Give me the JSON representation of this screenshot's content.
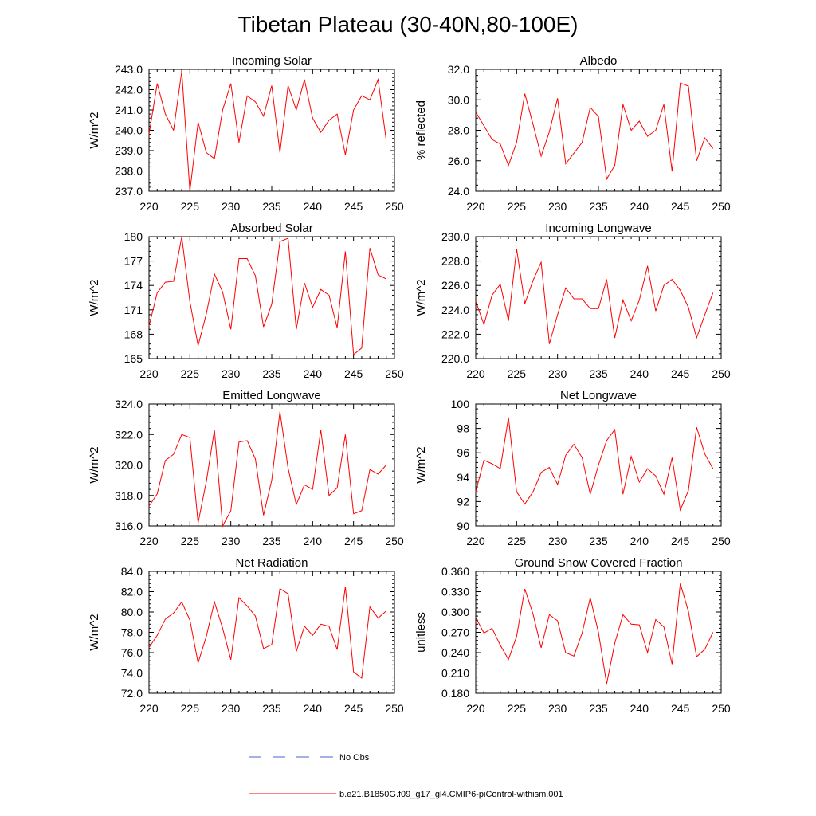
{
  "figure": {
    "title": "Tibetan Plateau (30-40N,80-100E)"
  },
  "legend": {
    "items": [
      {
        "label": "No Obs",
        "color": "#4a63d0",
        "style": "dashed"
      },
      {
        "label": "b.e21.B1850G.f09_g17_gl4.CMIP6-piControl-withism.001",
        "color": "#ff0000",
        "style": "solid"
      }
    ]
  },
  "chart_data": [
    {
      "type": "line",
      "title": "Incoming Solar",
      "ylabel": "W/m^2",
      "xlim": [
        220,
        250
      ],
      "ylim": [
        237.0,
        243.0
      ],
      "xticks": [
        "220",
        "225",
        "230",
        "235",
        "240",
        "245",
        "250"
      ],
      "yticks": [
        "237.0",
        "238.0",
        "239.0",
        "240.0",
        "241.0",
        "242.0",
        "243.0"
      ],
      "x": [
        220,
        221,
        222,
        223,
        224,
        225,
        226,
        227,
        228,
        229,
        230,
        231,
        232,
        233,
        234,
        235,
        236,
        237,
        238,
        239,
        240,
        241,
        242,
        243,
        244,
        245,
        246,
        247,
        248,
        249
      ],
      "series": [
        {
          "name": "b.e21.B1850G.f09_g17_gl4.CMIP6-piControl-withism.001",
          "color": "#ff0000",
          "values": [
            239.8,
            242.3,
            240.8,
            240.0,
            242.9,
            237.0,
            240.4,
            238.9,
            238.6,
            241.0,
            242.3,
            239.4,
            241.7,
            241.4,
            240.7,
            242.2,
            238.9,
            242.2,
            241.0,
            242.5,
            240.6,
            239.9,
            240.5,
            240.8,
            238.8,
            241.0,
            241.7,
            241.5,
            242.5,
            239.5
          ]
        }
      ]
    },
    {
      "type": "line",
      "title": "Albedo",
      "ylabel": "% reflected",
      "xlim": [
        220,
        250
      ],
      "ylim": [
        24.0,
        32.0
      ],
      "xticks": [
        "220",
        "225",
        "230",
        "235",
        "240",
        "245",
        "250"
      ],
      "yticks": [
        "24.0",
        "26.0",
        "28.0",
        "30.0",
        "32.0"
      ],
      "x": [
        220,
        221,
        222,
        223,
        224,
        225,
        226,
        227,
        228,
        229,
        230,
        231,
        232,
        233,
        234,
        235,
        236,
        237,
        238,
        239,
        240,
        241,
        242,
        243,
        244,
        245,
        246,
        247,
        248,
        249
      ],
      "series": [
        {
          "name": "b.e21.B1850G.f09_g17_gl4.CMIP6-piControl-withism.001",
          "color": "#ff0000",
          "values": [
            29.2,
            28.3,
            27.4,
            27.1,
            25.7,
            27.2,
            30.4,
            28.4,
            26.3,
            27.9,
            30.1,
            25.8,
            26.5,
            27.2,
            29.5,
            28.9,
            24.8,
            25.7,
            29.7,
            28.0,
            28.6,
            27.6,
            28.0,
            29.7,
            25.3,
            31.1,
            30.9,
            26.0,
            27.5,
            26.8
          ]
        }
      ]
    },
    {
      "type": "line",
      "title": "Absorbed Solar",
      "ylabel": "W/m^2",
      "xlim": [
        220,
        250
      ],
      "ylim": [
        165,
        180
      ],
      "xticks": [
        "220",
        "225",
        "230",
        "235",
        "240",
        "245",
        "250"
      ],
      "yticks": [
        "165",
        "168",
        "171",
        "174",
        "177",
        "180"
      ],
      "x": [
        220,
        221,
        222,
        223,
        224,
        225,
        226,
        227,
        228,
        229,
        230,
        231,
        232,
        233,
        234,
        235,
        236,
        237,
        238,
        239,
        240,
        241,
        242,
        243,
        244,
        245,
        246,
        247,
        248,
        249
      ],
      "series": [
        {
          "name": "b.e21.B1850G.f09_g17_gl4.CMIP6-piControl-withism.001",
          "color": "#ff0000",
          "values": [
            169.0,
            173.1,
            174.4,
            174.5,
            180.0,
            172.0,
            166.6,
            170.5,
            175.4,
            173.2,
            168.6,
            177.3,
            177.3,
            175.2,
            168.9,
            171.7,
            179.4,
            179.8,
            168.6,
            174.3,
            171.3,
            173.5,
            172.8,
            168.8,
            178.2,
            165.5,
            166.3,
            178.6,
            175.3,
            174.8
          ]
        }
      ]
    },
    {
      "type": "line",
      "title": "Incoming Longwave",
      "ylabel": "W/m^2",
      "xlim": [
        220,
        250
      ],
      "ylim": [
        220.0,
        230.0
      ],
      "xticks": [
        "220",
        "225",
        "230",
        "235",
        "240",
        "245",
        "250"
      ],
      "yticks": [
        "220.0",
        "222.0",
        "224.0",
        "226.0",
        "228.0",
        "230.0"
      ],
      "x": [
        220,
        221,
        222,
        223,
        224,
        225,
        226,
        227,
        228,
        229,
        230,
        231,
        232,
        233,
        234,
        235,
        236,
        237,
        238,
        239,
        240,
        241,
        242,
        243,
        244,
        245,
        246,
        247,
        248,
        249
      ],
      "series": [
        {
          "name": "b.e21.B1850G.f09_g17_gl4.CMIP6-piControl-withism.001",
          "color": "#ff0000",
          "values": [
            224.7,
            222.8,
            225.2,
            226.1,
            223.1,
            229.0,
            224.5,
            226.4,
            227.9,
            221.2,
            223.6,
            225.8,
            224.9,
            224.9,
            224.1,
            224.1,
            226.5,
            221.7,
            224.8,
            223.1,
            224.8,
            227.6,
            223.9,
            226.0,
            226.5,
            225.6,
            224.2,
            221.7,
            223.6,
            225.4
          ]
        }
      ]
    },
    {
      "type": "line",
      "title": "Emitted Longwave",
      "ylabel": "W/m^2",
      "xlim": [
        220,
        250
      ],
      "ylim": [
        316.0,
        324.0
      ],
      "xticks": [
        "220",
        "225",
        "230",
        "235",
        "240",
        "245",
        "250"
      ],
      "yticks": [
        "316.0",
        "318.0",
        "320.0",
        "322.0",
        "324.0"
      ],
      "x": [
        220,
        221,
        222,
        223,
        224,
        225,
        226,
        227,
        228,
        229,
        230,
        231,
        232,
        233,
        234,
        235,
        236,
        237,
        238,
        239,
        240,
        241,
        242,
        243,
        244,
        245,
        246,
        247,
        248,
        249
      ],
      "series": [
        {
          "name": "b.e21.B1850G.f09_g17_gl4.CMIP6-piControl-withism.001",
          "color": "#ff0000",
          "values": [
            317.3,
            318.1,
            320.3,
            320.7,
            322.0,
            321.8,
            316.2,
            318.9,
            322.3,
            316.0,
            317.0,
            321.5,
            321.6,
            320.4,
            316.7,
            319.0,
            323.5,
            319.8,
            317.4,
            318.7,
            318.4,
            322.3,
            318.0,
            318.5,
            322.0,
            316.8,
            317.0,
            319.7,
            319.4,
            320.0
          ]
        }
      ]
    },
    {
      "type": "line",
      "title": "Net Longwave",
      "ylabel": "W/m^2",
      "xlim": [
        220,
        250
      ],
      "ylim": [
        90,
        100
      ],
      "xticks": [
        "220",
        "225",
        "230",
        "235",
        "240",
        "245",
        "250"
      ],
      "yticks": [
        "90",
        "92",
        "94",
        "96",
        "98",
        "100"
      ],
      "x": [
        220,
        221,
        222,
        223,
        224,
        225,
        226,
        227,
        228,
        229,
        230,
        231,
        232,
        233,
        234,
        235,
        236,
        237,
        238,
        239,
        240,
        241,
        242,
        243,
        244,
        245,
        246,
        247,
        248,
        249
      ],
      "series": [
        {
          "name": "b.e21.B1850G.f09_g17_gl4.CMIP6-piControl-withism.001",
          "color": "#ff0000",
          "values": [
            92.8,
            95.4,
            95.1,
            94.7,
            98.9,
            92.8,
            91.8,
            92.8,
            94.4,
            94.8,
            93.4,
            95.8,
            96.7,
            95.6,
            92.6,
            95.0,
            97.0,
            97.9,
            92.6,
            95.7,
            93.6,
            94.7,
            94.1,
            92.6,
            95.6,
            91.3,
            92.9,
            98.1,
            95.9,
            94.7
          ]
        }
      ]
    },
    {
      "type": "line",
      "title": "Net Radiation",
      "ylabel": "W/m^2",
      "xlim": [
        220,
        250
      ],
      "ylim": [
        72.0,
        84.0
      ],
      "xticks": [
        "220",
        "225",
        "230",
        "235",
        "240",
        "245",
        "250"
      ],
      "yticks": [
        "72.0",
        "74.0",
        "76.0",
        "78.0",
        "80.0",
        "82.0",
        "84.0"
      ],
      "x": [
        220,
        221,
        222,
        223,
        224,
        225,
        226,
        227,
        228,
        229,
        230,
        231,
        232,
        233,
        234,
        235,
        236,
        237,
        238,
        239,
        240,
        241,
        242,
        243,
        244,
        245,
        246,
        247,
        248,
        249
      ],
      "series": [
        {
          "name": "b.e21.B1850G.f09_g17_gl4.CMIP6-piControl-withism.001",
          "color": "#ff0000",
          "values": [
            76.5,
            77.7,
            79.3,
            79.9,
            81.0,
            79.2,
            75.0,
            77.6,
            81.0,
            78.4,
            75.3,
            81.4,
            80.6,
            79.6,
            76.4,
            76.8,
            82.3,
            81.8,
            76.1,
            78.6,
            77.7,
            78.8,
            78.6,
            76.3,
            82.5,
            74.1,
            73.5,
            80.5,
            79.4,
            80.1
          ]
        }
      ]
    },
    {
      "type": "line",
      "title": "Ground Snow Covered Fraction",
      "ylabel": "unitless",
      "xlim": [
        220,
        250
      ],
      "ylim": [
        0.18,
        0.36
      ],
      "xticks": [
        "220",
        "225",
        "230",
        "235",
        "240",
        "245",
        "250"
      ],
      "yticks": [
        "0.180",
        "0.210",
        "0.240",
        "0.270",
        "0.300",
        "0.330",
        "0.360"
      ],
      "x": [
        220,
        221,
        222,
        223,
        224,
        225,
        226,
        227,
        228,
        229,
        230,
        231,
        232,
        233,
        234,
        235,
        236,
        237,
        238,
        239,
        240,
        241,
        242,
        243,
        244,
        245,
        246,
        247,
        248,
        249
      ],
      "series": [
        {
          "name": "b.e21.B1850G.f09_g17_gl4.CMIP6-piControl-withism.001",
          "color": "#ff0000",
          "values": [
            0.292,
            0.269,
            0.276,
            0.251,
            0.23,
            0.264,
            0.334,
            0.297,
            0.247,
            0.296,
            0.287,
            0.24,
            0.235,
            0.269,
            0.321,
            0.27,
            0.194,
            0.254,
            0.296,
            0.282,
            0.281,
            0.24,
            0.289,
            0.278,
            0.223,
            0.342,
            0.301,
            0.234,
            0.245,
            0.27
          ]
        }
      ]
    }
  ]
}
